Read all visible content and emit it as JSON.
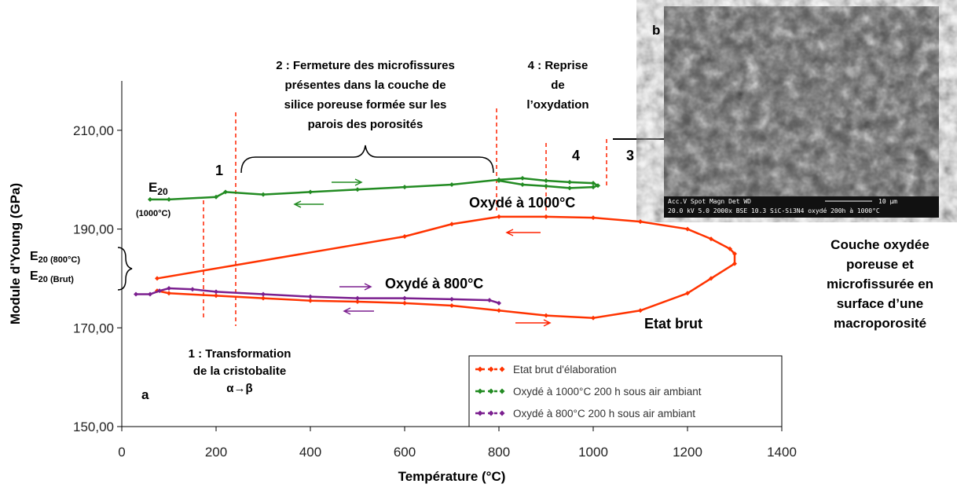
{
  "chart_data": {
    "type": "line",
    "xlabel": "Température (°C)",
    "ylabel": "Module d'Young (GPa)",
    "xlim": [
      0,
      1400
    ],
    "xticks": [
      0,
      200,
      400,
      600,
      800,
      1000,
      1200,
      1400
    ],
    "ylim": [
      150,
      220
    ],
    "yticks": [
      {
        "value": 150,
        "label": "150,00"
      },
      {
        "value": 170,
        "label": "170,00"
      },
      {
        "value": 190,
        "label": "190,00"
      },
      {
        "value": 210,
        "label": "210,00"
      }
    ],
    "legend": "lower right",
    "series": [
      {
        "name": "Etat brut d'élaboration",
        "color": "#ff3300",
        "x": [
          75,
          100,
          200,
          300,
          400,
          500,
          600,
          700,
          800,
          900,
          1000,
          1100,
          1200,
          1250,
          1300,
          1300,
          1290,
          1250,
          1200,
          1100,
          1000,
          900,
          800,
          700,
          600,
          75
        ],
        "values": [
          177.5,
          177,
          176.5,
          176,
          175.5,
          175.3,
          175,
          174.5,
          173.5,
          172.5,
          172,
          173.5,
          177,
          180,
          183,
          185,
          186,
          188,
          190,
          191.5,
          192.3,
          192.5,
          192.5,
          191,
          188.5,
          180
        ]
      },
      {
        "name": "Oxydé à 1000°C 200 h sous air ambiant",
        "color": "#228b22",
        "x": [
          60,
          100,
          200,
          220,
          300,
          400,
          500,
          600,
          700,
          800,
          850,
          900,
          950,
          1000,
          1010,
          1000,
          950,
          900,
          850,
          800
        ],
        "values": [
          196,
          196,
          196.5,
          197.5,
          197,
          197.5,
          198,
          198.5,
          199,
          200,
          200.3,
          199.8,
          199.5,
          199.3,
          198.8,
          198.5,
          198.3,
          198.7,
          199,
          199.8
        ]
      },
      {
        "name": "Oxydé à 800°C 200 h sous air ambiant",
        "color": "#7b1f8f",
        "x": [
          30,
          60,
          80,
          100,
          150,
          200,
          300,
          400,
          500,
          600,
          700,
          780,
          800
        ],
        "values": [
          176.8,
          176.8,
          177.5,
          178,
          177.8,
          177.3,
          176.8,
          176.3,
          176,
          176,
          175.8,
          175.6,
          175
        ]
      }
    ]
  },
  "annotations": {
    "zone2": [
      "2 : Fermeture des microfissures",
      "présentes dans la couche de",
      "silice poreuse formée sur les",
      "parois des porosités"
    ],
    "zone4": [
      "4 : Reprise",
      "de",
      "l’oxydation"
    ],
    "zone1": [
      "1 : Transformation",
      "de la cristobalite",
      "α→β"
    ],
    "mark1": "1",
    "mark4": "4",
    "mark3": "3",
    "panel_a": "a",
    "panel_b": "b",
    "e1000": {
      "main": "E",
      "sub": "20",
      "note": "(1000°C)"
    },
    "e800": {
      "main": "E",
      "sub": "20 (800°C)"
    },
    "ebrut": {
      "main": "E",
      "sub": "20 (Brut)"
    },
    "ox1000": "Oxydé à 1000°C",
    "ox800": "Oxydé à 800°C",
    "brut": "Etat brut",
    "caption": [
      "Couche oxydée",
      "poreuse et",
      "microfissurée en",
      "surface d’une",
      "macroporosité"
    ],
    "sem": [
      "Acc.V  Spot Magn    Det  WD",
      "10 µm",
      "20.0 kV 5.0  2000x   BSE 10.3  SiC-Si3N4 oxydé 200h à 1000°C"
    ]
  }
}
